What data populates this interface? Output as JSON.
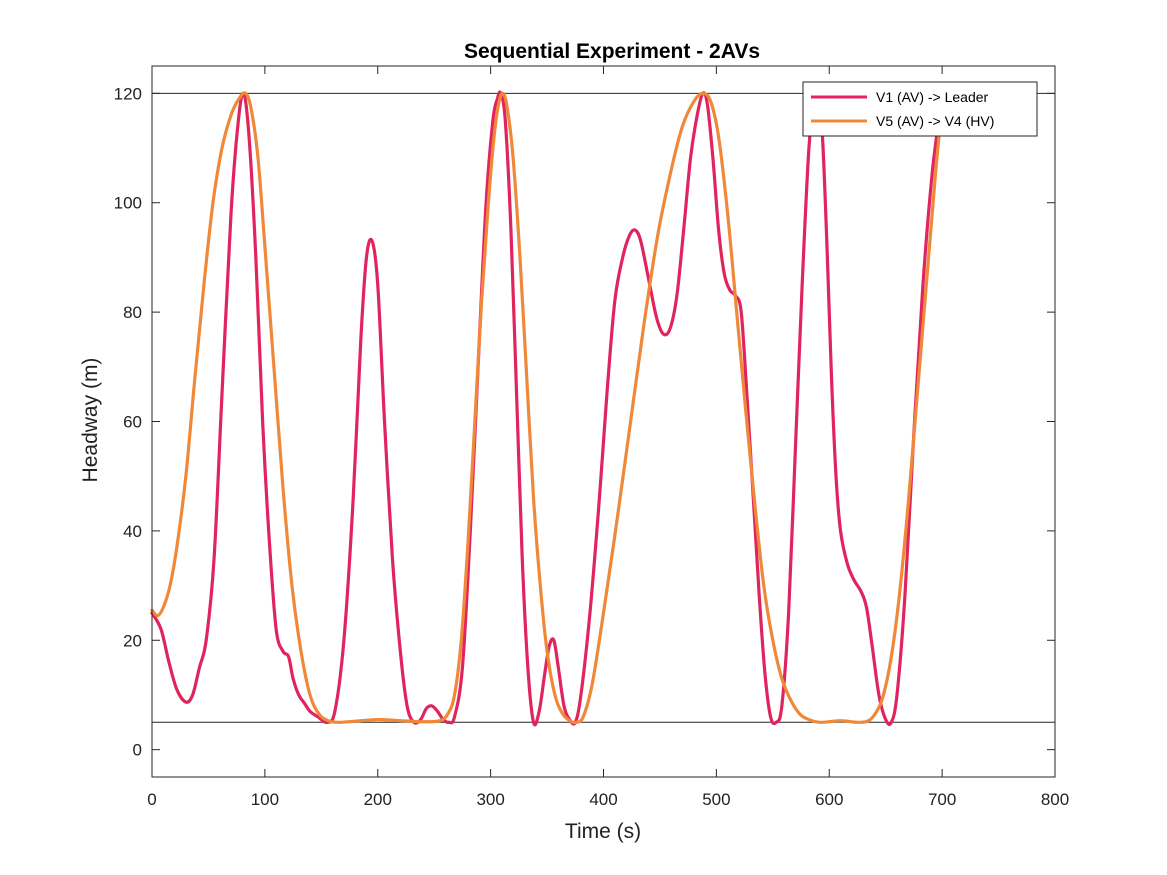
{
  "chart_data": {
    "type": "line",
    "title": "Sequential Experiment - 2AVs",
    "xlabel": "Time (s)",
    "ylabel": "Headway (m)",
    "xlim": [
      0,
      800
    ],
    "ylim": [
      -5,
      125
    ],
    "xticks": [
      0,
      100,
      200,
      300,
      400,
      500,
      600,
      700,
      800
    ],
    "yticks": [
      0,
      20,
      40,
      60,
      80,
      100,
      120
    ],
    "xtick_labels": [
      "0",
      "100",
      "200",
      "300",
      "400",
      "500",
      "600",
      "700",
      "800"
    ],
    "ytick_labels": [
      "0",
      "20",
      "40",
      "60",
      "80",
      "100",
      "120"
    ],
    "grid": false,
    "reference_lines": [
      5,
      120
    ],
    "legend_position": "top-right",
    "series": [
      {
        "name": "V1 (AV) -> Leader",
        "color": "#e0245e",
        "points": [
          [
            0,
            25
          ],
          [
            8,
            22
          ],
          [
            15,
            16
          ],
          [
            22,
            11
          ],
          [
            30,
            8.7
          ],
          [
            36,
            10
          ],
          [
            42,
            15
          ],
          [
            48,
            20
          ],
          [
            55,
            35
          ],
          [
            62,
            65
          ],
          [
            70,
            98
          ],
          [
            76,
            114
          ],
          [
            81,
            120
          ],
          [
            86,
            112
          ],
          [
            92,
            90
          ],
          [
            98,
            60
          ],
          [
            104,
            38
          ],
          [
            110,
            22
          ],
          [
            116,
            18
          ],
          [
            121,
            17
          ],
          [
            125,
            13
          ],
          [
            130,
            10
          ],
          [
            135,
            8.5
          ],
          [
            140,
            7
          ],
          [
            147,
            6
          ],
          [
            155,
            5
          ],
          [
            162,
            7
          ],
          [
            170,
            20
          ],
          [
            178,
            45
          ],
          [
            185,
            75
          ],
          [
            190,
            90
          ],
          [
            195,
            93
          ],
          [
            200,
            85
          ],
          [
            206,
            60
          ],
          [
            213,
            35
          ],
          [
            220,
            18
          ],
          [
            226,
            8
          ],
          [
            232,
            5
          ],
          [
            238,
            5.5
          ],
          [
            243,
            7.5
          ],
          [
            248,
            8
          ],
          [
            253,
            7
          ],
          [
            258,
            5.5
          ],
          [
            263,
            5
          ],
          [
            268,
            6
          ],
          [
            275,
            15
          ],
          [
            282,
            40
          ],
          [
            290,
            75
          ],
          [
            296,
            100
          ],
          [
            302,
            115
          ],
          [
            306,
            119
          ],
          [
            309,
            120
          ],
          [
            313,
            115
          ],
          [
            318,
            95
          ],
          [
            323,
            65
          ],
          [
            328,
            35
          ],
          [
            333,
            15
          ],
          [
            338,
            5
          ],
          [
            343,
            7
          ],
          [
            348,
            14
          ],
          [
            352,
            19
          ],
          [
            356,
            20
          ],
          [
            360,
            15
          ],
          [
            365,
            8
          ],
          [
            370,
            5.5
          ],
          [
            375,
            5
          ],
          [
            380,
            10
          ],
          [
            388,
            25
          ],
          [
            396,
            45
          ],
          [
            403,
            65
          ],
          [
            410,
            82
          ],
          [
            417,
            90
          ],
          [
            423,
            94
          ],
          [
            428,
            95
          ],
          [
            433,
            93
          ],
          [
            440,
            86
          ],
          [
            447,
            79
          ],
          [
            453,
            76
          ],
          [
            459,
            77
          ],
          [
            465,
            83
          ],
          [
            471,
            95
          ],
          [
            477,
            108
          ],
          [
            483,
            116
          ],
          [
            488,
            120
          ],
          [
            492,
            118
          ],
          [
            497,
            108
          ],
          [
            502,
            95
          ],
          [
            507,
            87
          ],
          [
            512,
            84
          ],
          [
            517,
            83
          ],
          [
            522,
            80
          ],
          [
            527,
            65
          ],
          [
            533,
            45
          ],
          [
            538,
            28
          ],
          [
            543,
            14
          ],
          [
            548,
            6
          ],
          [
            553,
            5
          ],
          [
            558,
            8
          ],
          [
            564,
            25
          ],
          [
            570,
            55
          ],
          [
            576,
            85
          ],
          [
            582,
            110
          ],
          [
            587,
            119
          ],
          [
            590,
            120
          ],
          [
            594,
            112
          ],
          [
            598,
            92
          ],
          [
            602,
            68
          ],
          [
            606,
            50
          ],
          [
            610,
            40
          ],
          [
            616,
            34
          ],
          [
            622,
            31
          ],
          [
            628,
            29
          ],
          [
            633,
            26
          ],
          [
            638,
            19
          ],
          [
            644,
            10
          ],
          [
            650,
            5.5
          ],
          [
            655,
            5
          ],
          [
            660,
            10
          ],
          [
            667,
            28
          ],
          [
            675,
            58
          ],
          [
            683,
            85
          ],
          [
            691,
            105
          ],
          [
            697,
            115
          ],
          [
            700,
            120
          ]
        ]
      },
      {
        "name": "V5 (AV) -> V4 (HV)",
        "color": "#f0883a",
        "points": [
          [
            0,
            25.5
          ],
          [
            5,
            24.5
          ],
          [
            10,
            26
          ],
          [
            16,
            30
          ],
          [
            22,
            37
          ],
          [
            30,
            50
          ],
          [
            38,
            68
          ],
          [
            46,
            85
          ],
          [
            54,
            100
          ],
          [
            62,
            110
          ],
          [
            70,
            116
          ],
          [
            77,
            119
          ],
          [
            83,
            120
          ],
          [
            88,
            117
          ],
          [
            94,
            108
          ],
          [
            100,
            92
          ],
          [
            108,
            70
          ],
          [
            116,
            48
          ],
          [
            124,
            30
          ],
          [
            132,
            18
          ],
          [
            140,
            10
          ],
          [
            148,
            6.5
          ],
          [
            156,
            5.3
          ],
          [
            165,
            5
          ],
          [
            180,
            5.2
          ],
          [
            200,
            5.5
          ],
          [
            220,
            5.3
          ],
          [
            240,
            5.1
          ],
          [
            255,
            5.3
          ],
          [
            262,
            6.5
          ],
          [
            268,
            10
          ],
          [
            274,
            20
          ],
          [
            280,
            38
          ],
          [
            286,
            60
          ],
          [
            292,
            82
          ],
          [
            298,
            100
          ],
          [
            303,
            112
          ],
          [
            307,
            118
          ],
          [
            311,
            120
          ],
          [
            315,
            117
          ],
          [
            320,
            108
          ],
          [
            326,
            90
          ],
          [
            332,
            68
          ],
          [
            338,
            46
          ],
          [
            344,
            30
          ],
          [
            350,
            18
          ],
          [
            357,
            10
          ],
          [
            364,
            6.5
          ],
          [
            371,
            5.2
          ],
          [
            376,
            5
          ],
          [
            382,
            6
          ],
          [
            390,
            12
          ],
          [
            400,
            25
          ],
          [
            412,
            42
          ],
          [
            424,
            60
          ],
          [
            436,
            78
          ],
          [
            448,
            94
          ],
          [
            460,
            106
          ],
          [
            470,
            114
          ],
          [
            480,
            118.5
          ],
          [
            488,
            120
          ],
          [
            495,
            118.5
          ],
          [
            502,
            112
          ],
          [
            510,
            98
          ],
          [
            518,
            80
          ],
          [
            526,
            62
          ],
          [
            534,
            45
          ],
          [
            542,
            30
          ],
          [
            550,
            20
          ],
          [
            558,
            13
          ],
          [
            566,
            9
          ],
          [
            574,
            6.5
          ],
          [
            582,
            5.5
          ],
          [
            592,
            5
          ],
          [
            610,
            5.3
          ],
          [
            625,
            5
          ],
          [
            635,
            5.3
          ],
          [
            642,
            7
          ],
          [
            648,
            10
          ],
          [
            655,
            17
          ],
          [
            662,
            28
          ],
          [
            670,
            45
          ],
          [
            678,
            65
          ],
          [
            686,
            85
          ],
          [
            694,
            105
          ],
          [
            700,
            118
          ]
        ]
      }
    ]
  }
}
